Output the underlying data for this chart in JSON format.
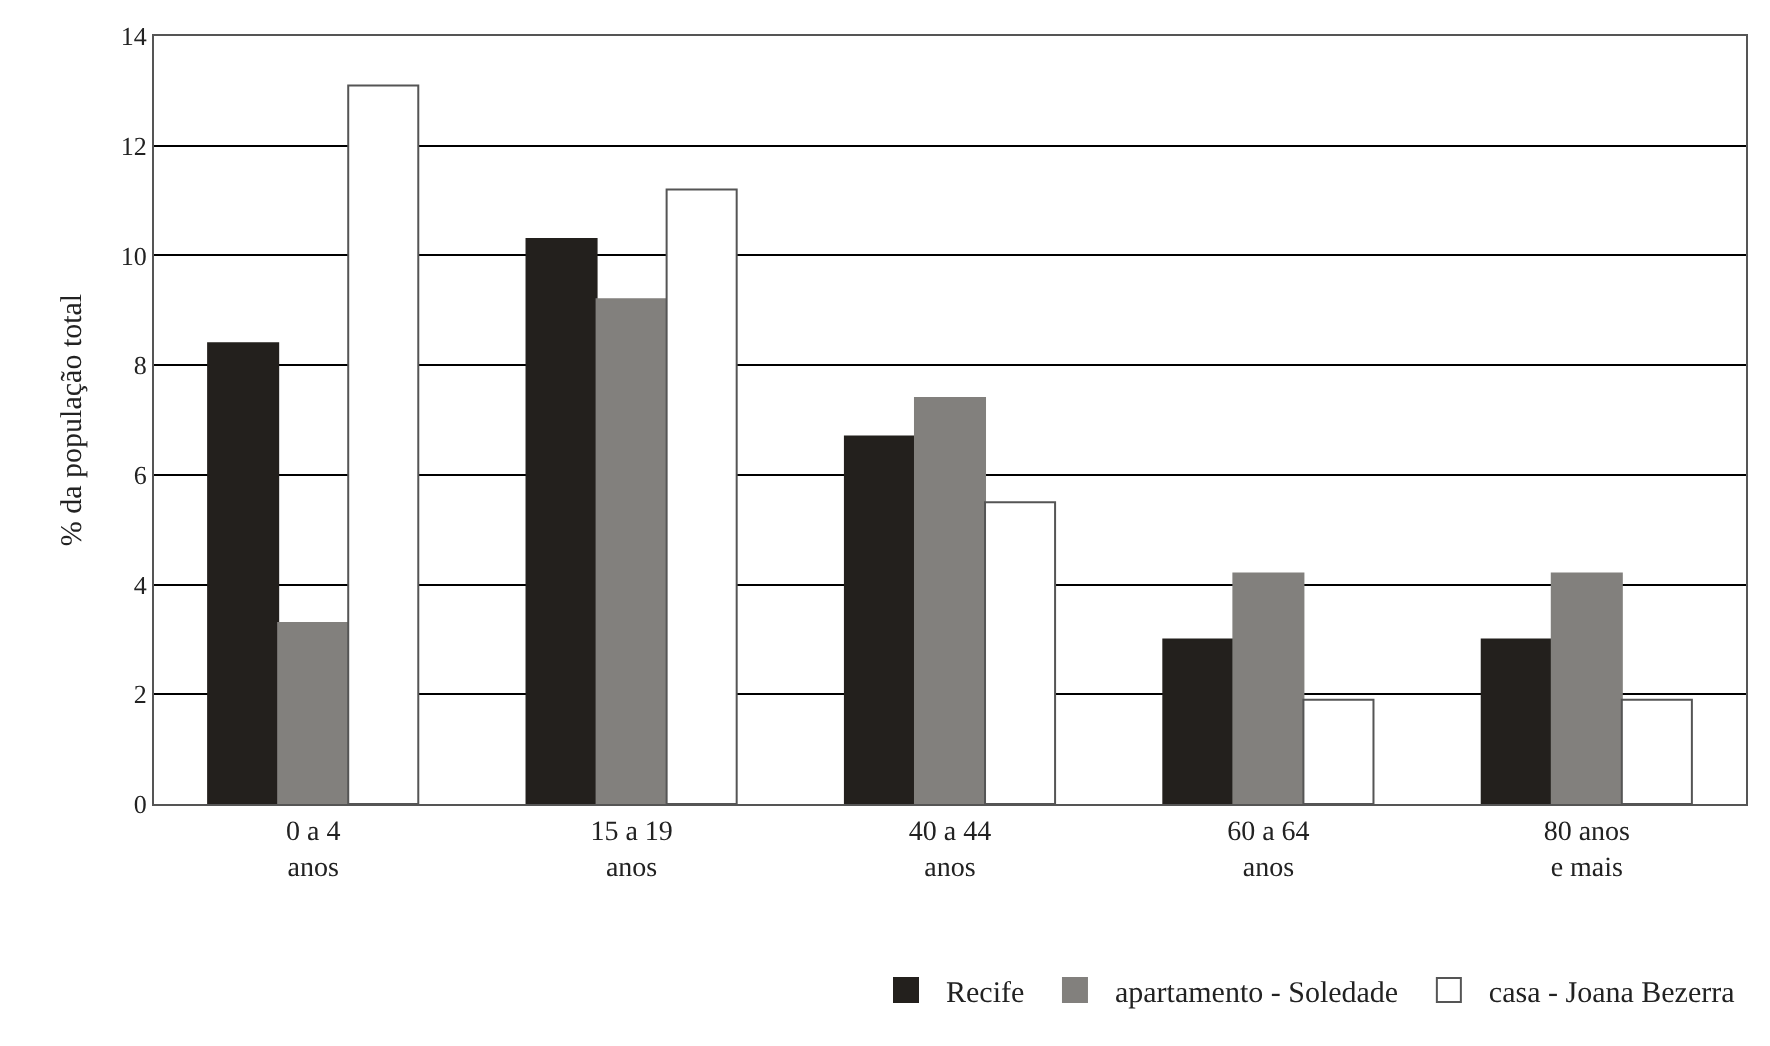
{
  "chart_data": {
    "type": "bar",
    "ylabel": "% da população total",
    "categories": [
      "0 a 4\nanos",
      "15 a 19\nanos",
      "40 a 44\nanos",
      "60 a 64\nanos",
      "80 anos\ne mais"
    ],
    "series": [
      {
        "name": "Recife",
        "color": "#23201d",
        "values": [
          8.4,
          10.3,
          6.7,
          3.0,
          3.0
        ]
      },
      {
        "name": "apartamento - Soledade",
        "color": "#82807d",
        "values": [
          3.3,
          9.2,
          7.4,
          4.2,
          4.2
        ]
      },
      {
        "name": "casa - Joana Bezerra",
        "color": "#ffffff",
        "values": [
          13.1,
          11.2,
          5.5,
          1.9,
          1.9
        ]
      }
    ],
    "ylim": [
      0,
      14
    ],
    "yticks": [
      0,
      2,
      4,
      6,
      8,
      10,
      12,
      14
    ],
    "grid": "y",
    "legend": "bottom right"
  }
}
